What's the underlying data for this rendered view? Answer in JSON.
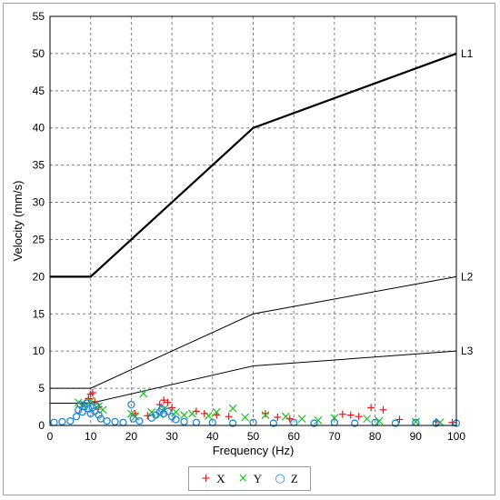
{
  "chart_data": {
    "type": "scatter",
    "xlabel": "Frequency (Hz)",
    "ylabel": "Velocity (mm/s)",
    "xlim": [
      0,
      100
    ],
    "ylim": [
      0,
      55
    ],
    "x_ticks": [
      0,
      10,
      20,
      30,
      40,
      50,
      60,
      70,
      80,
      90,
      100
    ],
    "y_ticks": [
      0,
      5,
      10,
      15,
      20,
      25,
      30,
      35,
      40,
      45,
      50,
      55
    ],
    "grid": true,
    "legend_position": "bottom",
    "limit_lines": [
      {
        "name": "L1",
        "points": [
          [
            0,
            20
          ],
          [
            10,
            20
          ],
          [
            50,
            40
          ],
          [
            100,
            50
          ]
        ]
      },
      {
        "name": "L2",
        "points": [
          [
            0,
            5
          ],
          [
            10,
            5
          ],
          [
            50,
            15
          ],
          [
            100,
            20
          ]
        ]
      },
      {
        "name": "L3",
        "points": [
          [
            0,
            3
          ],
          [
            10,
            3
          ],
          [
            50,
            8
          ],
          [
            100,
            10
          ]
        ]
      }
    ],
    "series": [
      {
        "name": "X",
        "marker": "+",
        "color": "#e8141a",
        "points": [
          [
            10,
            4.2
          ],
          [
            10.5,
            4.4
          ],
          [
            9.5,
            3.6
          ],
          [
            11,
            3.2
          ],
          [
            8.5,
            2.9
          ],
          [
            12,
            2.5
          ],
          [
            28,
            3.4
          ],
          [
            29,
            3.1
          ],
          [
            27,
            2.8
          ],
          [
            30,
            2.4
          ],
          [
            21,
            1.6
          ],
          [
            24,
            1.3
          ],
          [
            36,
            1.9
          ],
          [
            38,
            1.6
          ],
          [
            41,
            1.4
          ],
          [
            44,
            1.2
          ],
          [
            53,
            1.6
          ],
          [
            56,
            1.1
          ],
          [
            59,
            0.9
          ],
          [
            72,
            1.5
          ],
          [
            74,
            1.4
          ],
          [
            76,
            1.2
          ],
          [
            79,
            2.4
          ],
          [
            82,
            2.1
          ],
          [
            86,
            0.8
          ],
          [
            95,
            0.5
          ],
          [
            99,
            0.4
          ]
        ]
      },
      {
        "name": "Y",
        "marker": "×",
        "color": "#17c21f",
        "points": [
          [
            7,
            3.1
          ],
          [
            8,
            2.7
          ],
          [
            10,
            3.3
          ],
          [
            12,
            2.6
          ],
          [
            13,
            2.1
          ],
          [
            20,
            1.6
          ],
          [
            21,
            1.2
          ],
          [
            23,
            4.3
          ],
          [
            25,
            1.8
          ],
          [
            27,
            1.5
          ],
          [
            28,
            2.2
          ],
          [
            31,
            1.8
          ],
          [
            33,
            1.4
          ],
          [
            35,
            1.6
          ],
          [
            39,
            1.3
          ],
          [
            41,
            1.8
          ],
          [
            45,
            2.3
          ],
          [
            48,
            1.1
          ],
          [
            53,
            1.4
          ],
          [
            58,
            1.2
          ],
          [
            62,
            0.9
          ],
          [
            66,
            0.7
          ],
          [
            70,
            1.0
          ],
          [
            78,
            0.9
          ],
          [
            81,
            0.6
          ],
          [
            90,
            0.5
          ],
          [
            96,
            0.4
          ]
        ]
      },
      {
        "name": "Z",
        "marker": "○",
        "color": "#1f88d6",
        "points": [
          [
            1,
            0.4
          ],
          [
            3,
            0.5
          ],
          [
            5,
            0.6
          ],
          [
            6.5,
            1.2
          ],
          [
            7,
            2.1
          ],
          [
            7.5,
            2.8
          ],
          [
            8,
            1.8
          ],
          [
            8.5,
            2.5
          ],
          [
            9,
            3.0
          ],
          [
            9.5,
            2.2
          ],
          [
            10,
            1.6
          ],
          [
            10.5,
            2.4
          ],
          [
            11,
            1.9
          ],
          [
            11.5,
            2.6
          ],
          [
            12,
            1.4
          ],
          [
            12.5,
            0.9
          ],
          [
            14,
            0.6
          ],
          [
            16,
            0.5
          ],
          [
            18,
            0.4
          ],
          [
            20,
            2.8
          ],
          [
            20.5,
            0.9
          ],
          [
            22,
            0.6
          ],
          [
            25,
            1.0
          ],
          [
            26,
            1.4
          ],
          [
            27,
            1.8
          ],
          [
            27.5,
            2.2
          ],
          [
            28,
            1.6
          ],
          [
            29,
            1.9
          ],
          [
            30,
            1.2
          ],
          [
            31,
            0.8
          ],
          [
            33,
            0.5
          ],
          [
            36,
            0.4
          ],
          [
            40,
            0.4
          ],
          [
            45,
            0.3
          ],
          [
            50,
            0.4
          ],
          [
            55,
            0.3
          ],
          [
            60,
            0.4
          ],
          [
            65,
            0.3
          ],
          [
            70,
            0.4
          ],
          [
            75,
            0.3
          ],
          [
            80,
            0.4
          ],
          [
            85,
            0.3
          ],
          [
            90,
            0.4
          ],
          [
            95,
            0.3
          ],
          [
            100,
            0.3
          ]
        ]
      }
    ]
  }
}
